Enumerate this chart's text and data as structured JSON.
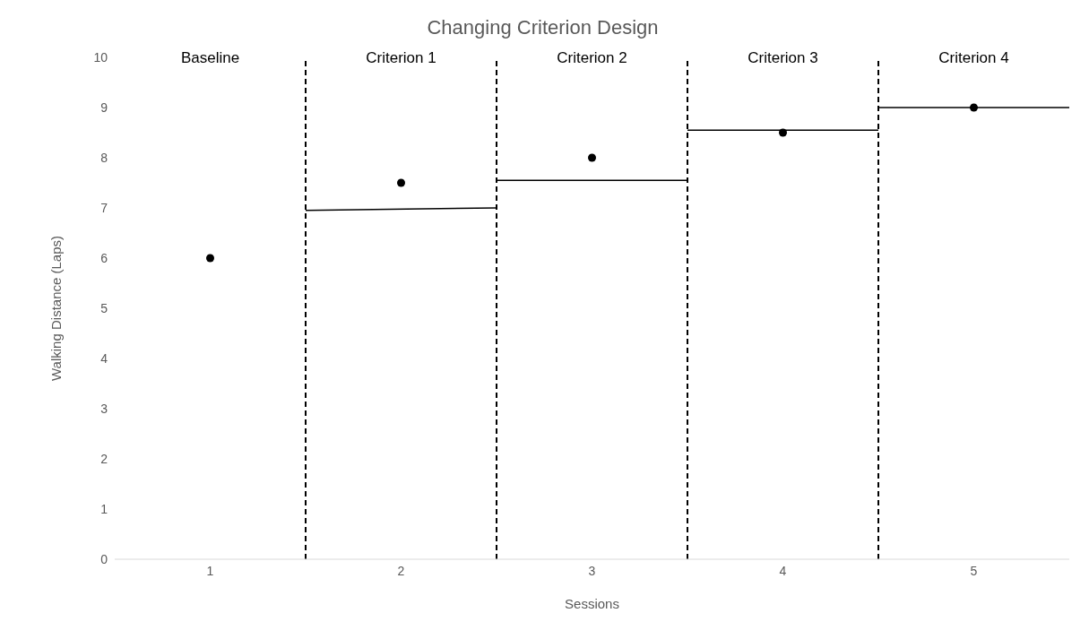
{
  "chart_data": {
    "type": "scatter",
    "title": "Changing Criterion Design",
    "xlabel": "Sessions",
    "ylabel": "Walking Distance (Laps)",
    "x": [
      1,
      2,
      3,
      4,
      5
    ],
    "series": [
      {
        "color": "#000000",
        "marker": "circle",
        "values": [
          6,
          7.5,
          8,
          8.5,
          9
        ]
      },
      {
        "type": "line",
        "color": "#000000",
        "x": [
          1.5,
          2.5
        ],
        "values": [
          6.95,
          7
        ]
      },
      {
        "type": "line",
        "color": "#000000",
        "x": [
          2.5,
          3.5
        ],
        "values": [
          7.55,
          7.55
        ]
      },
      {
        "type": "line",
        "color": "#000000",
        "x": [
          3.5,
          4.5
        ],
        "values": [
          8.55,
          8.55
        ]
      },
      {
        "type": "line",
        "color": "#000000",
        "x": [
          4.5,
          5.5
        ],
        "values": [
          9,
          9
        ]
      }
    ],
    "xlim": [
      0.5,
      5.5
    ],
    "xticks": [
      1,
      2,
      3,
      4,
      5
    ],
    "ylim": [
      0,
      10
    ],
    "yticks": [
      0,
      1,
      2,
      3,
      4,
      5,
      6,
      7,
      8,
      9,
      10
    ],
    "ref_lines": [
      {
        "axis": "x",
        "value": 1.5,
        "color": "#000000",
        "line_style": "dashed"
      },
      {
        "axis": "x",
        "value": 2.5,
        "color": "#000000",
        "line_style": "dashed"
      },
      {
        "axis": "x",
        "value": 3.5,
        "color": "#000000",
        "line_style": "dashed"
      },
      {
        "axis": "x",
        "value": 4.5,
        "color": "#000000",
        "line_style": "dashed"
      }
    ],
    "annotations": [
      "Baseline",
      "Criterion 1",
      "Criterion 2",
      "Criterion 3",
      "Criterion 4"
    ],
    "grid": false,
    "legend": false
  }
}
